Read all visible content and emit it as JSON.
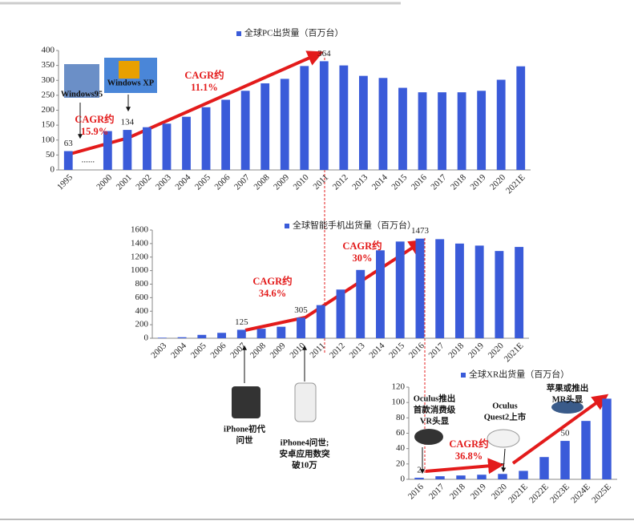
{
  "chart_data": [
    {
      "type": "bar",
      "title": "全球PC出货量（百万台）",
      "color": "#3a5bd9",
      "categories": [
        "1995",
        "......",
        "2000",
        "2001",
        "2002",
        "2003",
        "2004",
        "2005",
        "2006",
        "2007",
        "2008",
        "2009",
        "2010",
        "2011",
        "2012",
        "2013",
        "2014",
        "2015",
        "2016",
        "2017",
        "2018",
        "2019",
        "2020",
        "2021E"
      ],
      "values": [
        63,
        null,
        130,
        134,
        143,
        155,
        178,
        210,
        235,
        265,
        290,
        305,
        348,
        364,
        350,
        315,
        308,
        275,
        260,
        260,
        260,
        265,
        302,
        347
      ],
      "ylim": [
        0,
        400
      ],
      "yticks": [
        0,
        50,
        100,
        150,
        200,
        250,
        300,
        350,
        400
      ],
      "annotations": [
        {
          "lines": [
            "CAGR约",
            "15.9%"
          ]
        },
        {
          "lines": [
            "CAGR约",
            "11.1%"
          ]
        },
        {
          "lines": [
            "Windows95"
          ]
        },
        {
          "lines": [
            "Windows XP"
          ]
        }
      ]
    },
    {
      "type": "bar",
      "title": "全球智能手机出货量（百万台）",
      "color": "#3a5bd9",
      "categories": [
        "2003",
        "2004",
        "2005",
        "2006",
        "2007",
        "2008",
        "2009",
        "2010",
        "2011",
        "2012",
        "2013",
        "2014",
        "2015",
        "2016",
        "2017",
        "2018",
        "2019",
        "2020",
        "2021E"
      ],
      "values": [
        8,
        15,
        50,
        80,
        125,
        140,
        170,
        305,
        490,
        720,
        1010,
        1300,
        1430,
        1473,
        1465,
        1400,
        1370,
        1290,
        1350
      ],
      "ylim": [
        0,
        1600
      ],
      "yticks": [
        0,
        200,
        400,
        600,
        800,
        1000,
        1200,
        1400,
        1600
      ],
      "annotations": [
        {
          "lines": [
            "CAGR约",
            "34.6%"
          ]
        },
        {
          "lines": [
            "CAGR约",
            "30%"
          ]
        },
        {
          "lines": [
            "iPhone初代",
            "问世"
          ]
        },
        {
          "lines": [
            "iPhone4问世;",
            "安卓应用数突",
            "破10万"
          ]
        }
      ]
    },
    {
      "type": "bar",
      "title": "全球XR出货量（百万台）",
      "color": "#3a5bd9",
      "categories": [
        "2016",
        "2017",
        "2018",
        "2019",
        "2020",
        "2021E",
        "2022E",
        "2023E",
        "2024E",
        "2025E"
      ],
      "values": [
        2,
        4,
        5,
        6,
        7,
        11,
        29,
        50,
        76,
        105
      ],
      "ylim": [
        0,
        120
      ],
      "yticks": [
        0,
        20,
        40,
        60,
        80,
        100,
        120
      ],
      "annotations": [
        {
          "lines": [
            "CAGR约",
            "36.8%"
          ]
        },
        {
          "lines": [
            "Oculus推出",
            "首款消费级",
            "VR头显"
          ]
        },
        {
          "lines": [
            "Oculus",
            "Quest2上市"
          ]
        },
        {
          "lines": [
            "苹果或推出",
            "MR头显"
          ]
        }
      ]
    }
  ]
}
